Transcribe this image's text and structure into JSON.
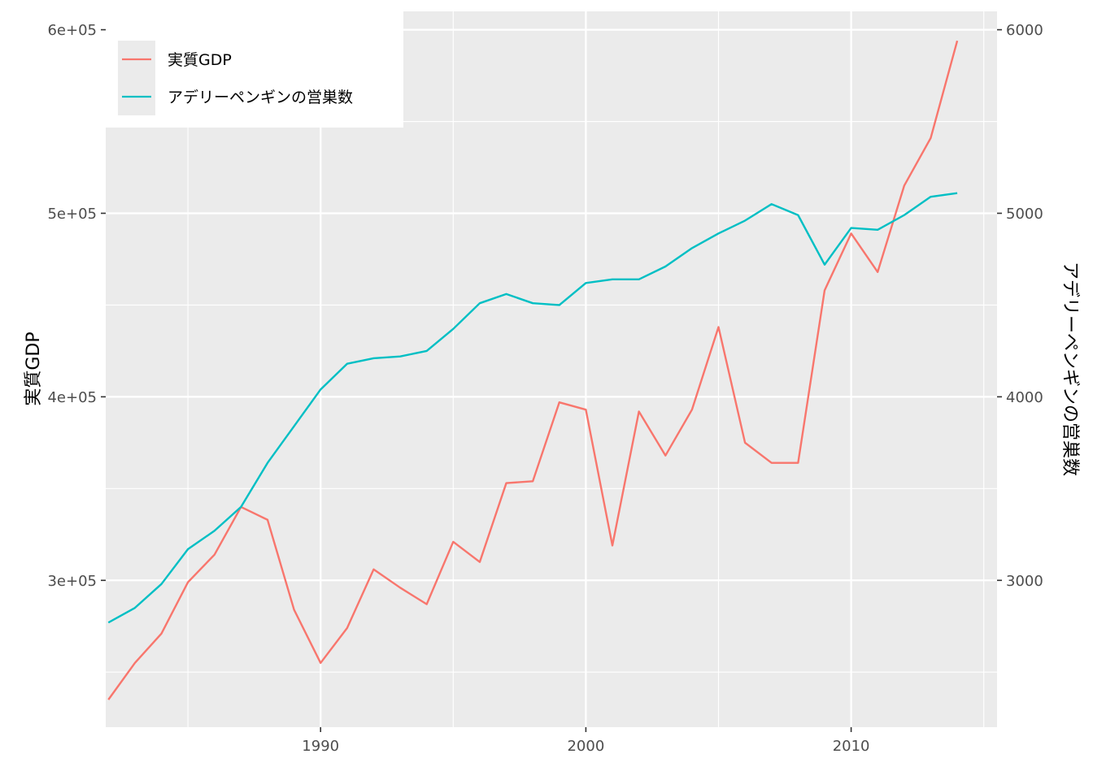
{
  "chart_data": {
    "type": "line",
    "x": [
      1982,
      1983,
      1984,
      1985,
      1986,
      1987,
      1988,
      1989,
      1990,
      1991,
      1992,
      1993,
      1994,
      1995,
      1996,
      1997,
      1998,
      1999,
      2000,
      2001,
      2002,
      2003,
      2004,
      2005,
      2006,
      2007,
      2008,
      2009,
      2010,
      2011,
      2012,
      2013,
      2014
    ],
    "xlim": [
      1981.9,
      2015.5
    ],
    "x_ticks": [
      1990,
      2000,
      2010
    ],
    "x_tick_labels": [
      "1990",
      "2000",
      "2010"
    ],
    "ylabel": "実質GDP",
    "ylim": [
      220000,
      610000
    ],
    "y_ticks": [
      300000,
      400000,
      500000,
      600000
    ],
    "y_tick_labels": [
      "3e+05",
      "4e+05",
      "5e+05",
      "6e+05"
    ],
    "y2label": "アデリーペンギンの営巣数",
    "y2lim": [
      2200,
      6100
    ],
    "y2_ticks": [
      3000,
      4000,
      5000,
      6000
    ],
    "y2_tick_labels": [
      "3000",
      "4000",
      "5000",
      "6000"
    ],
    "grid": true,
    "legend_position": "top-left",
    "series": [
      {
        "name": "実質GDP",
        "axis": "left",
        "color": "#F8766D",
        "values": [
          235000,
          255000,
          271000,
          299000,
          314000,
          340000,
          333000,
          284000,
          255000,
          274000,
          306000,
          296000,
          287000,
          321000,
          310000,
          353000,
          354000,
          397000,
          393000,
          319000,
          392000,
          368000,
          393000,
          438000,
          375000,
          364000,
          364000,
          458000,
          489000,
          468000,
          515000,
          541000,
          594000
        ]
      },
      {
        "name": "アデリーペンギンの営巣数",
        "axis": "right",
        "color": "#00BFC4",
        "values": [
          2770,
          2850,
          2980,
          3170,
          3270,
          3400,
          3640,
          3840,
          4040,
          4180,
          4210,
          4220,
          4250,
          4370,
          4510,
          4560,
          4510,
          4500,
          4620,
          4640,
          4640,
          4710,
          4810,
          4890,
          4960,
          5050,
          4990,
          4720,
          4920,
          4910,
          4990,
          5090,
          5110
        ]
      }
    ]
  }
}
